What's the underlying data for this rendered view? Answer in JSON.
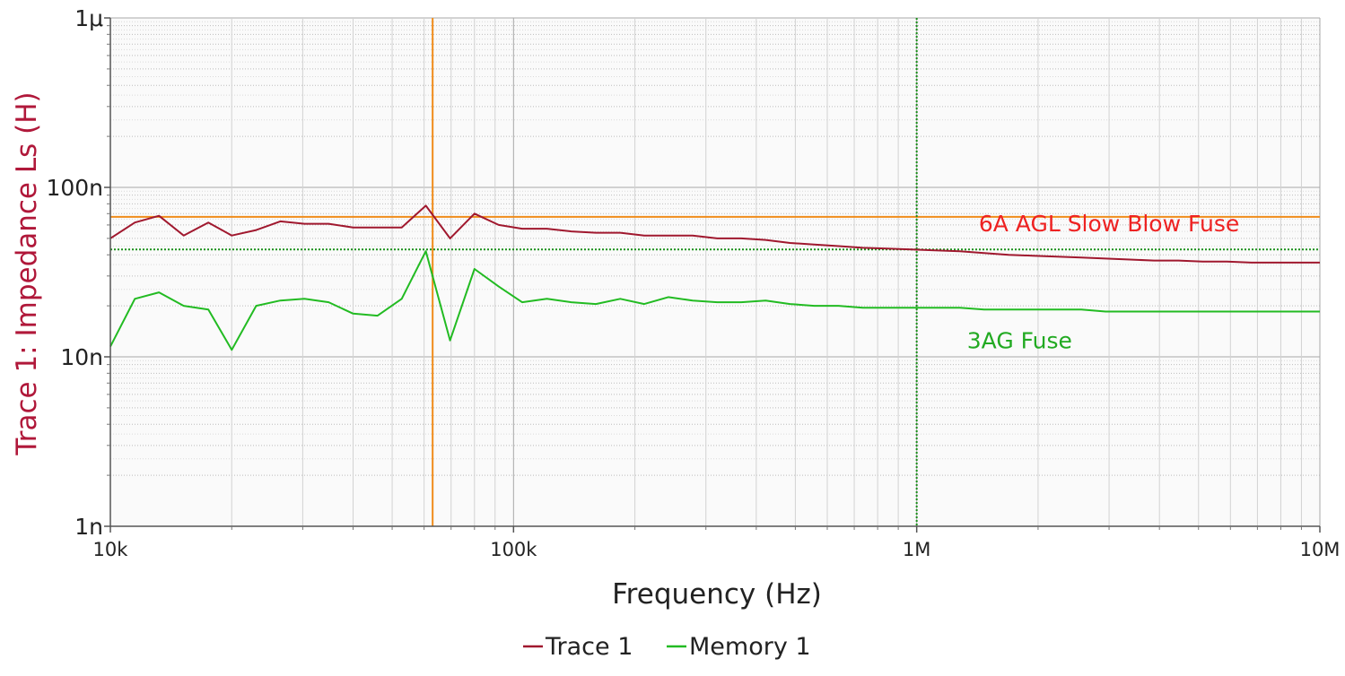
{
  "chart_data": {
    "type": "line",
    "xlabel": "Frequency (Hz)",
    "ylabel": "Trace 1: Impedance Ls (H)",
    "x_scale": "log",
    "y_scale": "log",
    "xlim": [
      10000,
      10000000
    ],
    "ylim": [
      1e-09,
      1e-06
    ],
    "x_ticks": [
      {
        "value": 10000,
        "label": "10k"
      },
      {
        "value": 100000,
        "label": "100k"
      },
      {
        "value": 1000000,
        "label": "1M"
      },
      {
        "value": 10000000,
        "label": "10M"
      }
    ],
    "y_ticks": [
      {
        "value": 1e-09,
        "label": "1n"
      },
      {
        "value": 1e-08,
        "label": "10n"
      },
      {
        "value": 1e-07,
        "label": "100n"
      },
      {
        "value": 1e-06,
        "label": "1μ"
      }
    ],
    "grid": true,
    "legend_position": "bottom-center",
    "series": [
      {
        "name": "Trace 1",
        "color": "#a0182e",
        "x": [
          10000,
          11500,
          13200,
          15200,
          17500,
          20000,
          23000,
          26400,
          30300,
          34800,
          40000,
          46000,
          52800,
          60600,
          69600,
          80000,
          91900,
          105000,
          121000,
          139000,
          160000,
          184000,
          211000,
          242000,
          278000,
          320000,
          367000,
          422000,
          485000,
          557000,
          640000,
          735000,
          845000,
          970000,
          1110000,
          1280000,
          1470000,
          1690000,
          1940000,
          2230000,
          2560000,
          2940000,
          3380000,
          3880000,
          4460000,
          5120000,
          5880000,
          6760000,
          7760000,
          8920000,
          10000000
        ],
        "values": [
          5e-08,
          6.2e-08,
          6.8e-08,
          5.2e-08,
          6.2e-08,
          5.2e-08,
          5.6e-08,
          6.3e-08,
          6.1e-08,
          6.1e-08,
          5.8e-08,
          5.8e-08,
          5.8e-08,
          7.8e-08,
          5e-08,
          7e-08,
          6e-08,
          5.7e-08,
          5.7e-08,
          5.5e-08,
          5.4e-08,
          5.4e-08,
          5.2e-08,
          5.2e-08,
          5.2e-08,
          5e-08,
          5e-08,
          4.9e-08,
          4.7e-08,
          4.6e-08,
          4.5e-08,
          4.4e-08,
          4.35e-08,
          4.3e-08,
          4.25e-08,
          4.2e-08,
          4.1e-08,
          4e-08,
          3.95e-08,
          3.9e-08,
          3.85e-08,
          3.8e-08,
          3.75e-08,
          3.7e-08,
          3.7e-08,
          3.65e-08,
          3.65e-08,
          3.6e-08,
          3.6e-08,
          3.6e-08,
          3.6e-08
        ]
      },
      {
        "name": "Memory 1",
        "color": "#22bb22",
        "x": [
          10000,
          11500,
          13200,
          15200,
          17500,
          20000,
          23000,
          26400,
          30300,
          34800,
          40000,
          46000,
          52800,
          60600,
          69600,
          80000,
          91900,
          105000,
          121000,
          139000,
          160000,
          184000,
          211000,
          242000,
          278000,
          320000,
          367000,
          422000,
          485000,
          557000,
          640000,
          735000,
          845000,
          970000,
          1110000,
          1280000,
          1470000,
          1690000,
          1940000,
          2230000,
          2560000,
          2940000,
          3380000,
          3880000,
          4460000,
          5120000,
          5880000,
          6760000,
          7760000,
          8920000,
          10000000
        ],
        "values": [
          1.15e-08,
          2.2e-08,
          2.4e-08,
          2e-08,
          1.9e-08,
          1.1e-08,
          2e-08,
          2.15e-08,
          2.2e-08,
          2.1e-08,
          1.8e-08,
          1.75e-08,
          2.2e-08,
          4.2e-08,
          1.25e-08,
          3.3e-08,
          2.6e-08,
          2.1e-08,
          2.2e-08,
          2.1e-08,
          2.05e-08,
          2.2e-08,
          2.05e-08,
          2.25e-08,
          2.15e-08,
          2.1e-08,
          2.1e-08,
          2.15e-08,
          2.05e-08,
          2e-08,
          2e-08,
          1.95e-08,
          1.95e-08,
          1.95e-08,
          1.95e-08,
          1.95e-08,
          1.9e-08,
          1.9e-08,
          1.9e-08,
          1.9e-08,
          1.9e-08,
          1.85e-08,
          1.85e-08,
          1.85e-08,
          1.85e-08,
          1.85e-08,
          1.85e-08,
          1.85e-08,
          1.85e-08,
          1.85e-08,
          1.85e-08
        ]
      }
    ],
    "reference_lines": [
      {
        "orientation": "horizontal",
        "value": 6.7e-08,
        "color": "#f08c1a",
        "style": "solid"
      },
      {
        "orientation": "vertical",
        "value": 63000,
        "color": "#f08c1a",
        "style": "solid"
      },
      {
        "orientation": "horizontal",
        "value": 4.3e-08,
        "color": "#1a8f1a",
        "style": "dotted"
      },
      {
        "orientation": "vertical",
        "value": 1000000,
        "color": "#1a8f1a",
        "style": "dotted"
      }
    ],
    "annotations": [
      {
        "text": "6A AGL Slow Blow Fuse",
        "x": 3000000,
        "y": 6e-08,
        "color": "#ee2222"
      },
      {
        "text": "3AG Fuse",
        "x": 1800000,
        "y": 1.22e-08,
        "color": "#22aa22"
      }
    ]
  }
}
